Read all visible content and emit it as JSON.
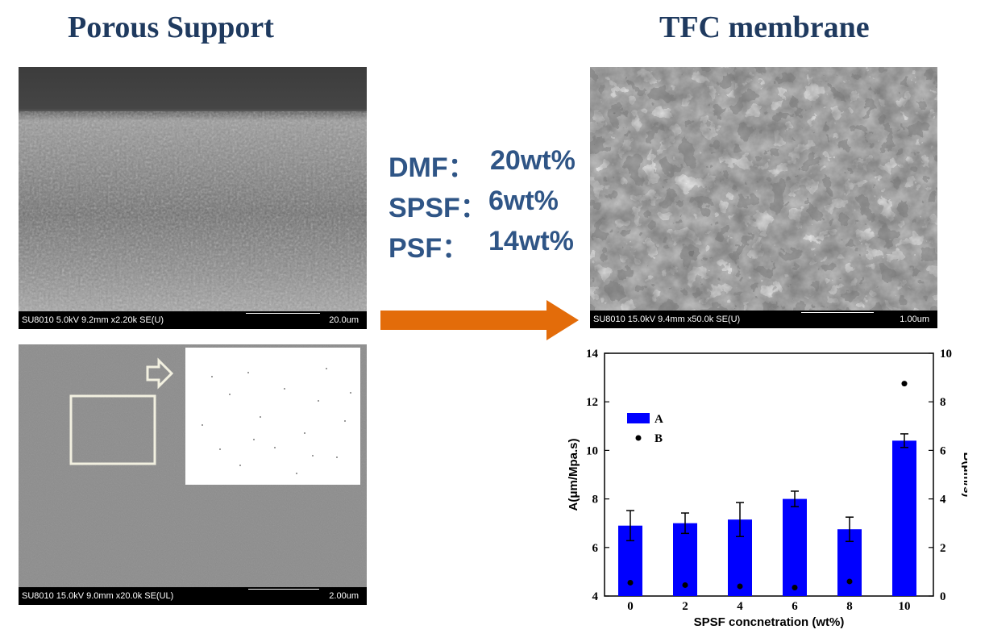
{
  "headings": {
    "porous_support": "Porous Support",
    "tfc_membrane": "TFC membrane"
  },
  "sem_images": {
    "support_cross_section": {
      "meta": "SU8010 5.0kV 9.2mm x2.20k SE(U)",
      "scale": "20.0um"
    },
    "support_surface": {
      "meta": "SU8010 15.0kV 9.0mm x20.0k SE(UL)",
      "scale": "2.00um"
    },
    "tfc_surface": {
      "meta": "SU8010 15.0kV 9.4mm x50.0k SE(U)",
      "scale": "1.00um"
    }
  },
  "composition": [
    {
      "label": "DMF：",
      "value": "20wt%"
    },
    {
      "label": "SPSF：",
      "value": "6wt%"
    },
    {
      "label": "PSF：",
      "value": "14wt%"
    }
  ],
  "colors": {
    "heading": "#1f3a5f",
    "composition": "#2f5586",
    "arrow": "#e36c0a",
    "bar": "#0000ff"
  },
  "chart_data": {
    "type": "bar",
    "xlabel": "SPSF concnetration (wt%)",
    "ylabel": "A(μm/Mpa.s)",
    "y2label": "B(μm/s)",
    "categories": [
      "0",
      "2",
      "4",
      "6",
      "8",
      "10"
    ],
    "ylim": [
      4,
      14
    ],
    "y2lim": [
      0,
      10
    ],
    "yticks": [
      "4",
      "6",
      "8",
      "10",
      "12",
      "14"
    ],
    "y2ticks": [
      "0",
      "2",
      "4",
      "6",
      "8",
      "10"
    ],
    "legend_position": "top-left",
    "series": [
      {
        "name": "A",
        "kind": "bar",
        "axis": "left",
        "values": [
          6.9,
          7.0,
          7.15,
          8.0,
          6.75,
          10.4
        ],
        "errors": [
          0.62,
          0.42,
          0.7,
          0.32,
          0.5,
          0.28
        ]
      },
      {
        "name": "B",
        "kind": "scatter",
        "axis": "right",
        "values": [
          0.55,
          0.45,
          0.4,
          0.35,
          0.6,
          8.75
        ]
      }
    ]
  }
}
